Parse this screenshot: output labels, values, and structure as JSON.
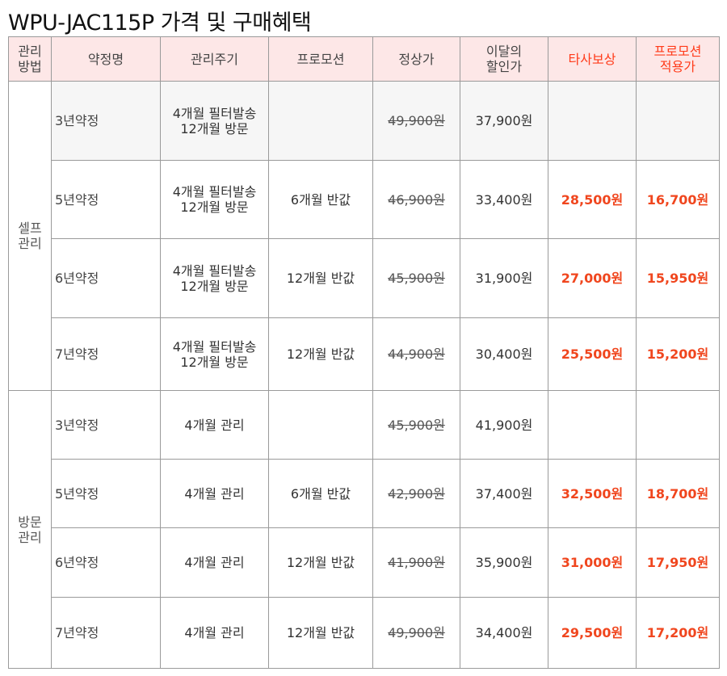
{
  "title": "WPU-JAC115P 가격 및 구매혜택",
  "headers": {
    "mgmt": [
      "관리",
      "방법"
    ],
    "contract": "약정명",
    "cycle": "관리주기",
    "promo": "프로모션",
    "normal": "정상가",
    "discount": [
      "이달의",
      "할인가"
    ],
    "compensation": "타사보상",
    "promo_price": [
      "프로모션",
      "적용가"
    ]
  },
  "groups": [
    {
      "label": [
        "셀프",
        "관리"
      ],
      "rows": [
        {
          "contract": "3년약정",
          "cycle": [
            "4개월 필터발송",
            "12개월 방문"
          ],
          "promo": "",
          "normal": "49,900원",
          "discount": "37,900원",
          "compensation": "",
          "promo_price": ""
        },
        {
          "contract": "5년약정",
          "cycle": [
            "4개월 필터발송",
            "12개월 방문"
          ],
          "promo": "6개월 반값",
          "normal": "46,900원",
          "discount": "33,400원",
          "compensation": "28,500원",
          "promo_price": "16,700원"
        },
        {
          "contract": "6년약정",
          "cycle": [
            "4개월 필터발송",
            "12개월 방문"
          ],
          "promo": "12개월 반값",
          "normal": "45,900원",
          "discount": "31,900원",
          "compensation": "27,000원",
          "promo_price": "15,950원"
        },
        {
          "contract": "7년약정",
          "cycle": [
            "4개월 필터발송",
            "12개월 방문"
          ],
          "promo": "12개월 반값",
          "normal": "44,900원",
          "discount": "30,400원",
          "compensation": "25,500원",
          "promo_price": "15,200원"
        }
      ]
    },
    {
      "label": [
        "방문",
        "관리"
      ],
      "rows": [
        {
          "contract": "3년약정",
          "cycle": [
            "4개월 관리"
          ],
          "promo": "",
          "normal": "45,900원",
          "discount": "41,900원",
          "compensation": "",
          "promo_price": ""
        },
        {
          "contract": "5년약정",
          "cycle": [
            "4개월 관리"
          ],
          "promo": "6개월 반값",
          "normal": "42,900원",
          "discount": "37,400원",
          "compensation": "32,500원",
          "promo_price": "18,700원"
        },
        {
          "contract": "6년약정",
          "cycle": [
            "4개월 관리"
          ],
          "promo": "12개월 반값",
          "normal": "41,900원",
          "discount": "35,900원",
          "compensation": "31,000원",
          "promo_price": "17,950원"
        },
        {
          "contract": "7년약정",
          "cycle": [
            "4개월 관리"
          ],
          "promo": "12개월 반값",
          "normal": "49,900원",
          "discount": "34,400원",
          "compensation": "29,500원",
          "promo_price": "17,200원"
        }
      ]
    }
  ]
}
